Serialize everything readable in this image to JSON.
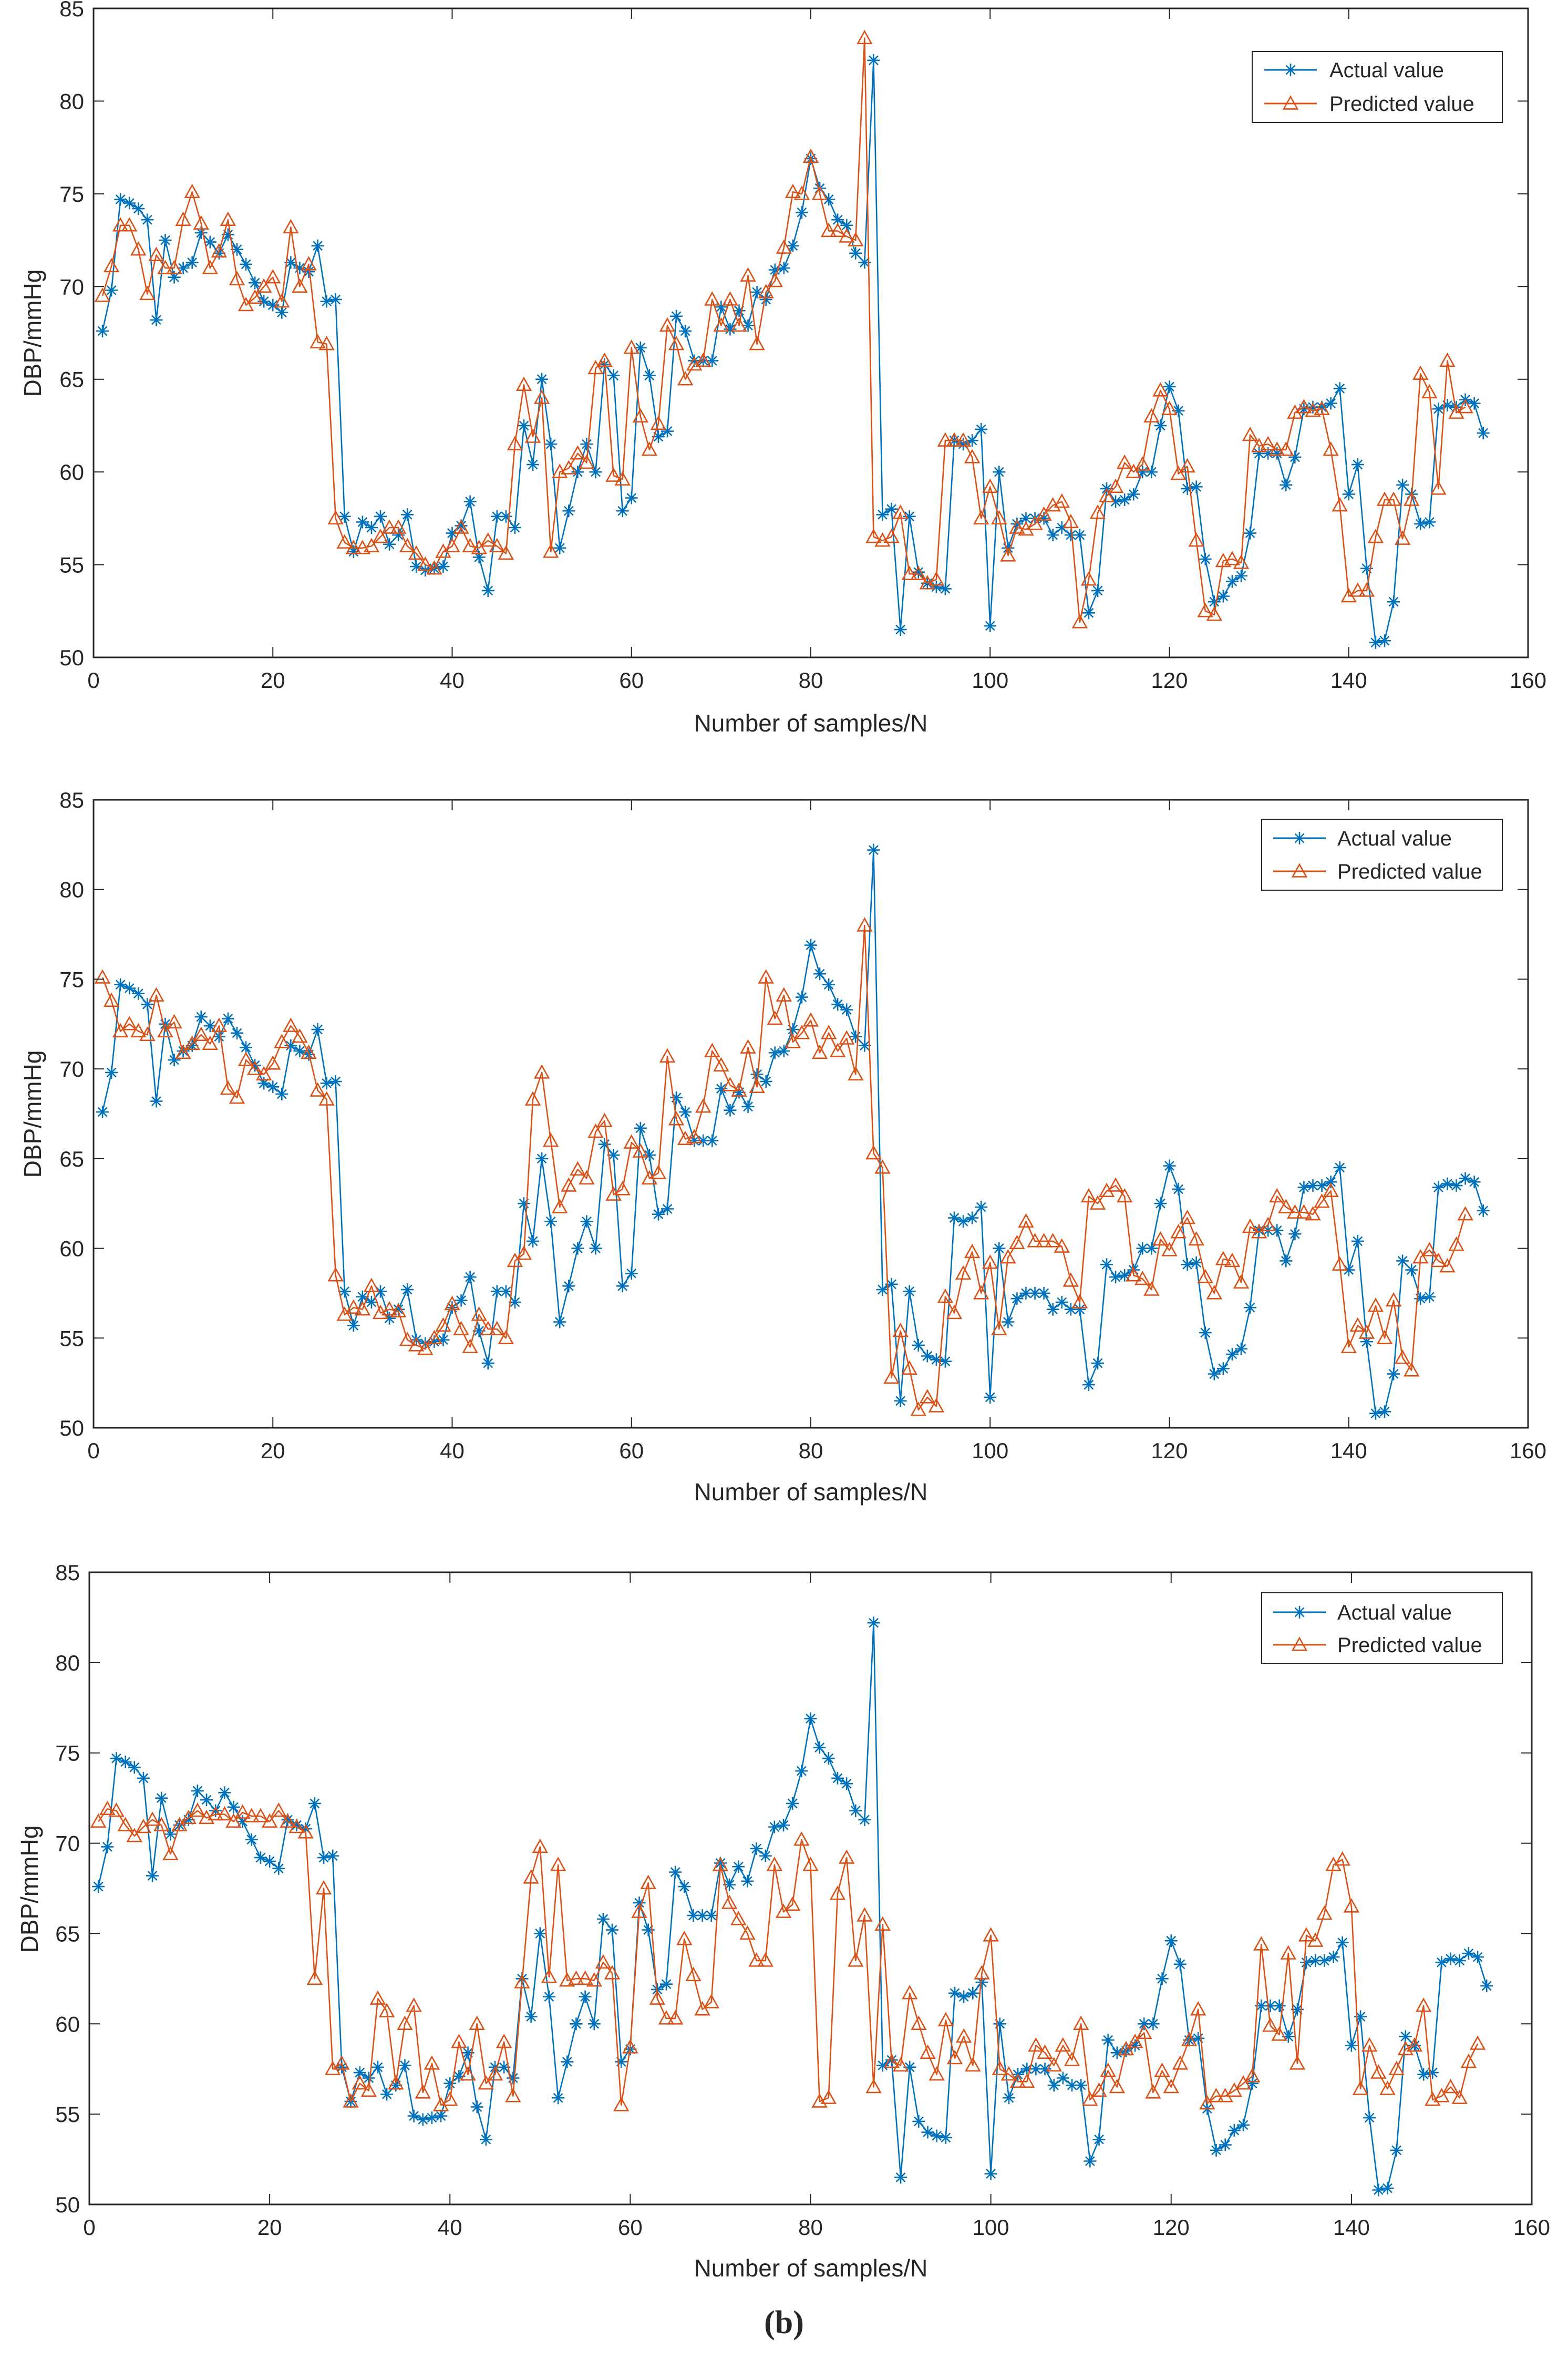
{
  "caption": {
    "open": "(",
    "letter": "b",
    "close": ")"
  },
  "colors": {
    "actual": "#0072BD",
    "predicted": "#D95319",
    "axis": "#262626"
  },
  "chart_data": [
    {
      "type": "line",
      "title": "",
      "xlabel": "Number of samples/N",
      "ylabel": "DBP/mmHg",
      "xlim": [
        0,
        160
      ],
      "ylim": [
        50,
        85
      ],
      "xticks": [
        0,
        20,
        40,
        60,
        80,
        100,
        120,
        140,
        160
      ],
      "yticks": [
        50,
        55,
        60,
        65,
        70,
        75,
        80,
        85
      ],
      "legend_position": "top-right",
      "grid": false,
      "x_start": 1,
      "series": [
        {
          "name": "Actual value",
          "marker": "asterisk",
          "color": "#0072BD",
          "values": [
            67.6,
            69.8,
            74.7,
            74.5,
            74.2,
            73.6,
            68.2,
            72.5,
            70.5,
            71.0,
            71.3,
            72.9,
            72.4,
            71.8,
            72.8,
            72.0,
            71.2,
            70.2,
            69.2,
            69.0,
            68.6,
            71.3,
            71.0,
            70.8,
            72.2,
            69.2,
            69.3,
            57.6,
            55.7,
            57.3,
            57.0,
            57.6,
            56.1,
            56.6,
            57.7,
            54.9,
            54.7,
            54.8,
            54.9,
            56.7,
            57.1,
            58.4,
            55.4,
            53.6,
            57.6,
            57.6,
            57.0,
            62.5,
            60.4,
            65.0,
            61.5,
            55.9,
            57.9,
            60.0,
            61.5,
            60.0,
            65.8,
            65.2,
            57.9,
            58.6,
            66.7,
            65.2,
            61.9,
            62.2,
            68.4,
            67.6,
            66.0,
            66.0,
            66.0,
            68.9,
            67.7,
            68.7,
            67.9,
            69.7,
            69.3,
            70.9,
            71.0,
            72.2,
            74.0,
            76.9,
            75.3,
            74.7,
            73.6,
            73.3,
            71.8,
            71.3,
            82.2,
            57.7,
            58.0,
            51.5,
            57.6,
            54.6,
            54.0,
            53.8,
            53.7,
            61.7,
            61.5,
            61.7,
            62.3,
            51.7,
            60.0,
            55.9,
            57.2,
            57.5,
            57.5,
            57.5,
            56.6,
            57.0,
            56.6,
            56.6,
            52.4,
            53.6,
            59.1,
            58.4,
            58.5,
            58.8,
            60.0,
            60.0,
            62.5,
            64.6,
            63.3,
            59.1,
            59.2,
            55.3,
            53.0,
            53.3,
            54.1,
            54.4,
            56.7,
            61.0,
            61.0,
            61.0,
            59.3,
            60.8,
            63.4,
            63.5,
            63.5,
            63.7,
            64.5,
            58.8,
            60.4,
            54.8,
            50.8,
            50.9,
            53.0,
            59.3,
            58.8,
            57.2,
            57.3,
            63.4,
            63.6,
            63.5,
            63.9,
            63.7,
            62.1
          ]
        },
        {
          "name": "Predicted value",
          "marker": "triangle",
          "color": "#D95319",
          "values": [
            69.5,
            71.1,
            73.3,
            73.3,
            72.0,
            69.6,
            71.7,
            71.0,
            71.0,
            73.6,
            75.1,
            73.4,
            71.0,
            71.9,
            73.6,
            70.4,
            69.0,
            69.4,
            70.0,
            70.5,
            69.2,
            73.2,
            70.0,
            71.2,
            67.0,
            66.9,
            57.5,
            56.2,
            55.9,
            55.9,
            56.0,
            56.5,
            57.0,
            57.0,
            56.0,
            55.6,
            55.0,
            54.8,
            55.7,
            56.0,
            57.0,
            56.0,
            55.9,
            56.3,
            56.0,
            55.6,
            61.5,
            64.7,
            61.9,
            64.0,
            55.7,
            60.0,
            60.2,
            61.0,
            60.5,
            65.6,
            66.0,
            59.8,
            59.6,
            66.7,
            63.0,
            61.2,
            62.6,
            67.9,
            66.9,
            65.0,
            65.8,
            66.0,
            69.3,
            67.9,
            69.3,
            67.9,
            70.6,
            66.9,
            69.7,
            70.3,
            72.1,
            75.1,
            75.0,
            77.0,
            75.0,
            73.0,
            73.0,
            72.7,
            72.5,
            83.4,
            56.5,
            56.3,
            56.5,
            57.8,
            54.5,
            54.5,
            54.0,
            54.2,
            61.7,
            61.7,
            61.7,
            60.8,
            57.5,
            59.2,
            57.5,
            55.5,
            57.0,
            56.9,
            57.2,
            57.7,
            58.2,
            58.4,
            57.3,
            51.9,
            54.2,
            57.8,
            58.7,
            59.2,
            60.5,
            60.0,
            60.4,
            63.0,
            64.4,
            63.4,
            59.9,
            60.3,
            56.3,
            52.5,
            52.3,
            55.2,
            55.3,
            55.1,
            62.0,
            61.4,
            61.5,
            61.2,
            61.2,
            63.2,
            63.5,
            63.3,
            63.4,
            61.2,
            58.2,
            53.3,
            53.6,
            53.6,
            56.5,
            58.5,
            58.5,
            56.4,
            58.5,
            65.3,
            64.3,
            59.1,
            66.0,
            63.2,
            63.5
          ]
        }
      ]
    },
    {
      "type": "line",
      "title": "",
      "xlabel": "Number of samples/N",
      "ylabel": "DBP/mmHg",
      "xlim": [
        0,
        160
      ],
      "ylim": [
        50,
        85
      ],
      "xticks": [
        0,
        20,
        40,
        60,
        80,
        100,
        120,
        140,
        160
      ],
      "yticks": [
        50,
        55,
        60,
        65,
        70,
        75,
        80,
        85
      ],
      "legend_position": "top-right",
      "grid": false,
      "x_start": 1,
      "series": [
        {
          "name": "Actual value",
          "marker": "asterisk",
          "color": "#0072BD",
          "values": [
            67.6,
            69.8,
            74.7,
            74.5,
            74.2,
            73.6,
            68.2,
            72.5,
            70.5,
            71.0,
            71.3,
            72.9,
            72.4,
            71.8,
            72.8,
            72.0,
            71.2,
            70.2,
            69.2,
            69.0,
            68.6,
            71.3,
            71.0,
            70.8,
            72.2,
            69.2,
            69.3,
            57.6,
            55.7,
            57.3,
            57.0,
            57.6,
            56.1,
            56.6,
            57.7,
            54.9,
            54.7,
            54.8,
            54.9,
            56.7,
            57.1,
            58.4,
            55.4,
            53.6,
            57.6,
            57.6,
            57.0,
            62.5,
            60.4,
            65.0,
            61.5,
            55.9,
            57.9,
            60.0,
            61.5,
            60.0,
            65.8,
            65.2,
            57.9,
            58.6,
            66.7,
            65.2,
            61.9,
            62.2,
            68.4,
            67.6,
            66.0,
            66.0,
            66.0,
            68.9,
            67.7,
            68.7,
            67.9,
            69.7,
            69.3,
            70.9,
            71.0,
            72.2,
            74.0,
            76.9,
            75.3,
            74.7,
            73.6,
            73.3,
            71.8,
            71.3,
            82.2,
            57.7,
            58.0,
            51.5,
            57.6,
            54.6,
            54.0,
            53.8,
            53.7,
            61.7,
            61.5,
            61.7,
            62.3,
            51.7,
            60.0,
            55.9,
            57.2,
            57.5,
            57.5,
            57.5,
            56.6,
            57.0,
            56.6,
            56.6,
            52.4,
            53.6,
            59.1,
            58.4,
            58.5,
            58.8,
            60.0,
            60.0,
            62.5,
            64.6,
            63.3,
            59.1,
            59.2,
            55.3,
            53.0,
            53.3,
            54.1,
            54.4,
            56.7,
            61.0,
            61.0,
            61.0,
            59.3,
            60.8,
            63.4,
            63.5,
            63.5,
            63.7,
            64.5,
            58.8,
            60.4,
            54.8,
            50.8,
            50.9,
            53.0,
            59.3,
            58.8,
            57.2,
            57.3,
            63.4,
            63.6,
            63.5,
            63.9,
            63.7,
            62.1
          ]
        },
        {
          "name": "Predicted value",
          "marker": "triangle",
          "color": "#D95319",
          "values": [
            75.1,
            73.8,
            72.1,
            72.5,
            72.1,
            71.9,
            74.1,
            72.1,
            72.6,
            70.9,
            71.4,
            71.9,
            71.4,
            72.4,
            68.9,
            68.4,
            70.5,
            70.0,
            69.7,
            70.3,
            71.5,
            72.4,
            71.8,
            70.9,
            68.8,
            68.3,
            58.5,
            56.3,
            56.7,
            56.6,
            57.9,
            56.4,
            56.6,
            56.5,
            54.9,
            54.6,
            54.4,
            55.0,
            55.7,
            56.9,
            55.5,
            54.5,
            56.3,
            55.5,
            55.5,
            55.0,
            59.3,
            59.7,
            68.3,
            69.8,
            66.0,
            62.3,
            63.5,
            64.4,
            63.9,
            66.5,
            67.1,
            63.0,
            63.3,
            65.9,
            65.4,
            63.9,
            64.2,
            70.7,
            67.2,
            66.1,
            66.2,
            67.9,
            71.0,
            70.2,
            69.1,
            68.8,
            71.2,
            69.0,
            75.1,
            72.8,
            74.1,
            71.5,
            72.0,
            72.7,
            70.9,
            72.0,
            71.0,
            71.7,
            69.7,
            78.0,
            65.3,
            64.5,
            52.8,
            55.4,
            53.3,
            51.0,
            51.7,
            51.2,
            57.3,
            56.4,
            58.6,
            59.8,
            57.5,
            59.2,
            55.5,
            59.5,
            60.3,
            61.5,
            60.4,
            60.4,
            60.4,
            60.1,
            58.2,
            57.0,
            62.9,
            62.5,
            63.2,
            63.5,
            62.9,
            58.5,
            58.3,
            57.7,
            60.5,
            59.9,
            60.9,
            61.7,
            60.5,
            58.4,
            57.5,
            59.4,
            59.3,
            58.1,
            61.2,
            60.9,
            61.3,
            62.9,
            62.3,
            62.0,
            62.0,
            61.9,
            62.6,
            63.2,
            59.1,
            54.5,
            55.7,
            55.3,
            56.8,
            55.0,
            57.1,
            53.9,
            53.2,
            59.5,
            59.9,
            59.3,
            59.0,
            60.2,
            61.9
          ]
        }
      ]
    },
    {
      "type": "line",
      "title": "",
      "xlabel": "Number of samples/N",
      "ylabel": "DBP/mmHg",
      "xlim": [
        0,
        160
      ],
      "ylim": [
        50,
        85
      ],
      "xticks": [
        0,
        20,
        40,
        60,
        80,
        100,
        120,
        140,
        160
      ],
      "yticks": [
        50,
        55,
        60,
        65,
        70,
        75,
        80,
        85
      ],
      "legend_position": "top-right",
      "grid": false,
      "x_start": 1,
      "series": [
        {
          "name": "Actual value",
          "marker": "asterisk",
          "color": "#0072BD",
          "values": [
            67.6,
            69.8,
            74.7,
            74.5,
            74.2,
            73.6,
            68.2,
            72.5,
            70.5,
            71.0,
            71.3,
            72.9,
            72.4,
            71.8,
            72.8,
            72.0,
            71.2,
            70.2,
            69.2,
            69.0,
            68.6,
            71.3,
            71.0,
            70.8,
            72.2,
            69.2,
            69.3,
            57.6,
            55.7,
            57.3,
            57.0,
            57.6,
            56.1,
            56.6,
            57.7,
            54.9,
            54.7,
            54.8,
            54.9,
            56.7,
            57.1,
            58.4,
            55.4,
            53.6,
            57.6,
            57.6,
            57.0,
            62.5,
            60.4,
            65.0,
            61.5,
            55.9,
            57.9,
            60.0,
            61.5,
            60.0,
            65.8,
            65.2,
            57.9,
            58.6,
            66.7,
            65.2,
            61.9,
            62.2,
            68.4,
            67.6,
            66.0,
            66.0,
            66.0,
            68.9,
            67.7,
            68.7,
            67.9,
            69.7,
            69.3,
            70.9,
            71.0,
            72.2,
            74.0,
            76.9,
            75.3,
            74.7,
            73.6,
            73.3,
            71.8,
            71.3,
            82.2,
            57.7,
            58.0,
            51.5,
            57.6,
            54.6,
            54.0,
            53.8,
            53.7,
            61.7,
            61.5,
            61.7,
            62.3,
            51.7,
            60.0,
            55.9,
            57.2,
            57.5,
            57.5,
            57.5,
            56.6,
            57.0,
            56.6,
            56.6,
            52.4,
            53.6,
            59.1,
            58.4,
            58.5,
            58.8,
            60.0,
            60.0,
            62.5,
            64.6,
            63.3,
            59.1,
            59.2,
            55.3,
            53.0,
            53.3,
            54.1,
            54.4,
            56.7,
            61.0,
            61.0,
            61.0,
            59.3,
            60.8,
            63.4,
            63.5,
            63.5,
            63.7,
            64.5,
            58.8,
            60.4,
            54.8,
            50.8,
            50.9,
            53.0,
            59.3,
            58.8,
            57.2,
            57.3,
            63.4,
            63.6,
            63.5,
            63.9,
            63.7,
            62.1
          ]
        },
        {
          "name": "Predicted value",
          "marker": "triangle",
          "color": "#D95319",
          "values": [
            71.2,
            71.9,
            71.8,
            71.0,
            70.4,
            70.9,
            71.3,
            71.0,
            69.4,
            71.0,
            71.4,
            71.8,
            71.4,
            71.6,
            71.6,
            71.2,
            71.7,
            71.5,
            71.5,
            71.2,
            71.8,
            71.2,
            70.9,
            70.6,
            62.5,
            67.5,
            57.5,
            57.8,
            55.7,
            56.7,
            56.3,
            61.4,
            60.7,
            56.7,
            60.0,
            61.0,
            56.2,
            57.8,
            55.5,
            55.8,
            59.0,
            57.2,
            60.0,
            56.7,
            57.2,
            59.0,
            56.0,
            62.3,
            68.1,
            69.8,
            62.6,
            68.8,
            62.4,
            62.5,
            62.5,
            62.4,
            63.4,
            62.8,
            55.5,
            58.7,
            66.2,
            67.8,
            61.4,
            60.3,
            60.3,
            64.7,
            62.7,
            60.8,
            61.2,
            68.8,
            66.7,
            65.8,
            65.0,
            63.5,
            63.5,
            68.8,
            66.2,
            66.6,
            70.2,
            68.8,
            55.7,
            55.9,
            67.2,
            69.2,
            63.5,
            66.0,
            56.5,
            65.5,
            57.9,
            57.7,
            61.7,
            60.0,
            58.4,
            57.2,
            60.2,
            58.1,
            59.3,
            57.7,
            62.8,
            64.9,
            57.5,
            57.2,
            56.8,
            56.8,
            58.8,
            58.4,
            57.7,
            58.8,
            58.0,
            60.0,
            55.8,
            56.3,
            57.4,
            56.5,
            58.6,
            59.0,
            59.5,
            56.2,
            57.4,
            56.5,
            57.8,
            59.1,
            60.8,
            55.6,
            56.0,
            56.0,
            56.3,
            56.7,
            57.1,
            64.4,
            59.9,
            59.4,
            63.9,
            57.8,
            64.9,
            64.6,
            66.1,
            68.8,
            69.1,
            66.5,
            56.4,
            58.8,
            57.3,
            56.4,
            57.5,
            58.6,
            58.8,
            61.0,
            55.8,
            56.0,
            56.5,
            55.9,
            57.9,
            58.9
          ]
        }
      ]
    }
  ]
}
